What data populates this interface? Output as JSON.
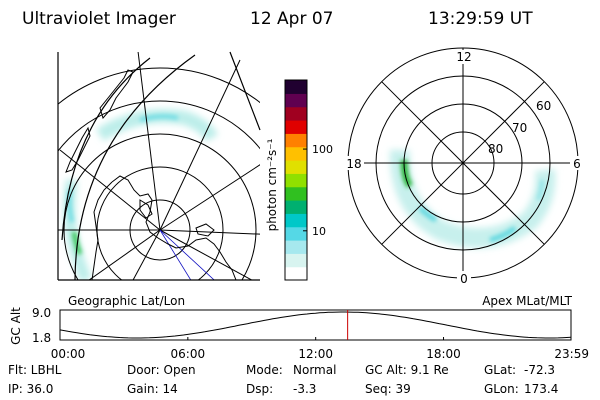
{
  "header": {
    "instrument": "Ultraviolet Imager",
    "date": "12 Apr 07",
    "time": "13:29:59 UT"
  },
  "geo_panel": {
    "label": "Geographic Lat/Lon"
  },
  "colorbar": {
    "label": "photon cm⁻²s⁻¹",
    "scale": "log",
    "range": [
      2.5,
      700
    ],
    "ticks": [
      {
        "value": 100,
        "label": "100"
      },
      {
        "value": 10,
        "label": "10"
      }
    ],
    "colors": [
      "#ffffff",
      "#d8f4f0",
      "#a6e8ee",
      "#55d8e6",
      "#00c8c8",
      "#00b070",
      "#30c020",
      "#90e000",
      "#e0e000",
      "#ffc000",
      "#ff8000",
      "#e00000",
      "#a00020",
      "#600050",
      "#200030"
    ]
  },
  "apex_panel": {
    "label": "Apex MLat/MLT",
    "mlt_labels": [
      {
        "mlt": 12,
        "label": "12"
      },
      {
        "mlt": 18,
        "label": "18"
      },
      {
        "mlt": 6,
        "label": "6"
      },
      {
        "mlt": 0,
        "label": "0"
      }
    ],
    "mlat_labels": [
      {
        "mlat": 60,
        "label": "60"
      },
      {
        "mlat": 70,
        "label": "70"
      },
      {
        "mlat": 80,
        "label": "80"
      }
    ]
  },
  "altitude_plot": {
    "ylabel": "GC Alt",
    "yticks": [
      {
        "value": 9.0,
        "label": "9.0"
      },
      {
        "value": 1.8,
        "label": "1.8"
      }
    ],
    "xticks": [
      {
        "hour": 0,
        "label": "00:00"
      },
      {
        "hour": 6,
        "label": "06:00"
      },
      {
        "hour": 12,
        "label": "12:00"
      },
      {
        "hour": 18,
        "label": "18:00"
      },
      {
        "hour": 23.983,
        "label": "23:59"
      }
    ],
    "current_hour": 13.5
  },
  "info": {
    "filter": "Flt: LBHL",
    "ip": "IP: 36.0",
    "door": "Door: Open",
    "gain": "Gain: 14",
    "mode_label": "Mode:",
    "mode_value": "Normal",
    "dsp_label": "Dsp:",
    "dsp_value": "-3.3",
    "gc_alt": "GC Alt: 9.1 Re",
    "seq": "Seq: 39",
    "glat_label": "GLat:",
    "glat_value": "-72.3",
    "glon_label": "GLon:",
    "glon_value": "173.4"
  }
}
